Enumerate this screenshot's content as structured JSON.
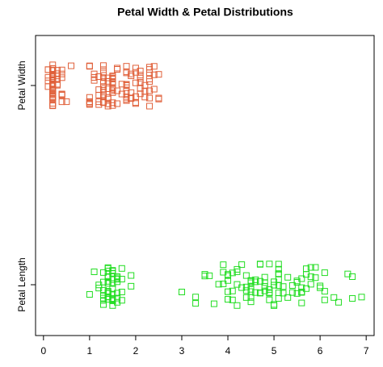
{
  "chart_data": {
    "type": "strip",
    "title": "Petal Width & Petal Distributions",
    "xlim": [
      -0.172,
      7.172
    ],
    "xticks": [
      0,
      1,
      2,
      3,
      4,
      5,
      6,
      7
    ],
    "series": [
      {
        "name": "Petal Length",
        "color": "#22dd22",
        "values": [
          1.4,
          1.4,
          1.3,
          1.5,
          1.4,
          1.7,
          1.4,
          1.5,
          1.4,
          1.5,
          1.5,
          1.6,
          1.4,
          1.1,
          1.2,
          1.5,
          1.3,
          1.4,
          1.7,
          1.5,
          1.7,
          1.5,
          1.0,
          1.7,
          1.9,
          1.6,
          1.6,
          1.5,
          1.4,
          1.6,
          1.6,
          1.5,
          1.5,
          1.4,
          1.5,
          1.2,
          1.3,
          1.4,
          1.3,
          1.5,
          1.3,
          1.3,
          1.3,
          1.6,
          1.9,
          1.4,
          1.6,
          1.4,
          1.5,
          1.4,
          4.7,
          4.5,
          4.9,
          4.0,
          4.6,
          4.5,
          4.7,
          3.3,
          4.6,
          3.9,
          3.5,
          4.2,
          4.0,
          4.7,
          3.6,
          4.4,
          4.5,
          4.1,
          4.5,
          3.9,
          4.8,
          4.0,
          4.9,
          4.7,
          4.3,
          4.4,
          4.8,
          5.0,
          4.5,
          3.5,
          3.8,
          3.7,
          3.9,
          5.1,
          4.5,
          4.5,
          4.7,
          4.4,
          4.1,
          4.0,
          4.4,
          4.6,
          4.0,
          3.3,
          4.2,
          4.2,
          4.2,
          4.3,
          3.0,
          4.1,
          6.0,
          5.1,
          5.9,
          5.6,
          5.8,
          6.6,
          4.5,
          6.3,
          5.8,
          6.1,
          5.1,
          5.3,
          5.5,
          5.0,
          5.1,
          5.3,
          5.5,
          6.7,
          6.9,
          5.0,
          5.7,
          4.9,
          6.7,
          4.9,
          5.7,
          6.0,
          4.8,
          4.9,
          5.6,
          5.8,
          6.1,
          6.4,
          5.6,
          5.1,
          5.6,
          6.1,
          5.6,
          5.5,
          4.8,
          5.4,
          5.6,
          5.1,
          5.1,
          5.9,
          5.7,
          5.2,
          5.0,
          5.2,
          5.4,
          5.1
        ]
      },
      {
        "name": "Petal Width",
        "color": "#e0603a",
        "values": [
          0.2,
          0.2,
          0.2,
          0.2,
          0.2,
          0.4,
          0.3,
          0.2,
          0.2,
          0.1,
          0.2,
          0.2,
          0.1,
          0.1,
          0.2,
          0.4,
          0.4,
          0.3,
          0.3,
          0.3,
          0.2,
          0.4,
          0.2,
          0.5,
          0.2,
          0.2,
          0.4,
          0.2,
          0.2,
          0.2,
          0.2,
          0.4,
          0.1,
          0.2,
          0.2,
          0.2,
          0.2,
          0.1,
          0.2,
          0.2,
          0.3,
          0.3,
          0.2,
          0.6,
          0.4,
          0.3,
          0.2,
          0.2,
          0.2,
          0.2,
          1.4,
          1.5,
          1.5,
          1.3,
          1.5,
          1.3,
          1.6,
          1.0,
          1.3,
          1.4,
          1.0,
          1.5,
          1.0,
          1.4,
          1.3,
          1.4,
          1.5,
          1.0,
          1.5,
          1.1,
          1.8,
          1.3,
          1.5,
          1.2,
          1.3,
          1.4,
          1.4,
          1.7,
          1.5,
          1.0,
          1.1,
          1.0,
          1.2,
          1.6,
          1.5,
          1.6,
          1.5,
          1.3,
          1.3,
          1.3,
          1.2,
          1.4,
          1.2,
          1.0,
          1.3,
          1.2,
          1.3,
          1.3,
          1.1,
          1.3,
          2.5,
          1.9,
          2.1,
          1.8,
          2.2,
          2.1,
          1.7,
          1.8,
          1.8,
          2.5,
          2.0,
          1.9,
          2.1,
          2.0,
          2.4,
          2.3,
          1.8,
          2.2,
          2.3,
          1.5,
          2.3,
          2.0,
          2.0,
          1.8,
          2.1,
          1.8,
          1.8,
          1.8,
          2.1,
          1.6,
          1.9,
          2.0,
          2.2,
          1.5,
          1.4,
          2.3,
          2.4,
          1.8,
          1.8,
          2.1,
          2.4,
          2.3,
          1.9,
          2.3,
          2.5,
          2.3,
          1.9,
          2.0,
          2.3,
          1.8
        ]
      }
    ]
  }
}
